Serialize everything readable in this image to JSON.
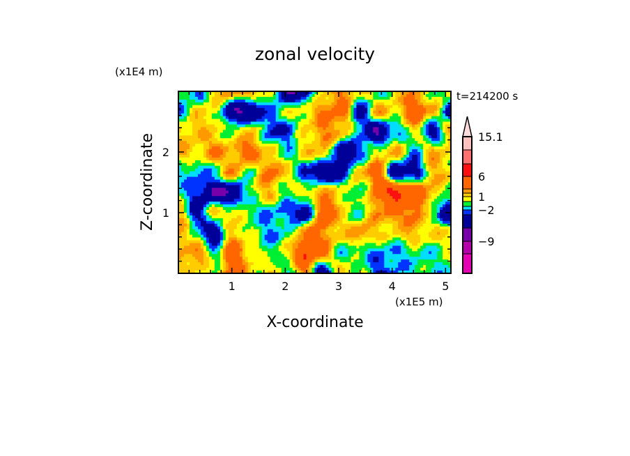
{
  "chart_data": {
    "type": "heatmap",
    "title": "zonal velocity",
    "xlabel": "X-coordinate",
    "ylabel": "Z-coordinate",
    "x_unit_label": "(x1E5 m)",
    "y_unit_label": "(x1E4 m)",
    "time_label": "t=214200 s",
    "xlim": [
      0,
      5.1
    ],
    "ylim": [
      0,
      3.0
    ],
    "x_ticks": [
      "1",
      "2",
      "3",
      "4",
      "5"
    ],
    "x_tick_values": [
      1,
      2,
      3,
      4,
      5
    ],
    "y_ticks": [
      "1",
      "2"
    ],
    "y_tick_values": [
      1,
      2
    ],
    "grid_note": "approximate coarse field, rows from top (z=3) to bottom (z=0), columns x=0..5.1",
    "field": [
      [
        -1,
        -2.5,
        1,
        3,
        2,
        0.5,
        -6,
        -4,
        1,
        3,
        1,
        -1,
        1,
        3,
        -1,
        1
      ],
      [
        -2,
        1,
        1,
        -6,
        -6,
        -2,
        0,
        1,
        3,
        4,
        -4,
        2,
        1,
        5,
        2,
        -4
      ],
      [
        1,
        2,
        1,
        0,
        2,
        -3,
        -3,
        1,
        3,
        2,
        -2,
        -6,
        -2,
        1,
        -4,
        2
      ],
      [
        2,
        1,
        3,
        2,
        4,
        1,
        -1,
        1,
        2,
        -5,
        -3,
        1,
        2,
        -2,
        2,
        1
      ],
      [
        -1,
        -2,
        -1,
        3,
        -1,
        4,
        1,
        -3,
        -6,
        -4,
        2,
        4,
        -5,
        -4,
        2,
        1
      ],
      [
        -1,
        -3,
        -6,
        -6,
        0,
        2,
        -1,
        1,
        2,
        1,
        -1,
        4,
        7,
        5,
        2,
        -1
      ],
      [
        2,
        -4,
        1,
        1,
        -1,
        -2,
        -2,
        -5,
        6,
        1,
        -1,
        3,
        3,
        4,
        -1,
        -5
      ],
      [
        3,
        -1,
        -5,
        2,
        0,
        -2,
        -1,
        3,
        3,
        1,
        3,
        1,
        1,
        2,
        1,
        1
      ],
      [
        2,
        3,
        -1,
        5,
        1,
        -1,
        1,
        6,
        3,
        -1,
        -1,
        -2,
        -2,
        -1,
        -1,
        0
      ],
      [
        1,
        1,
        0,
        5,
        1,
        1,
        -1,
        3,
        -5,
        2,
        0,
        -3,
        -2,
        -1,
        -1,
        -1
      ]
    ],
    "levels": [
      -12,
      -9,
      -6,
      -3,
      -2,
      -1,
      0,
      1,
      2,
      3,
      6,
      9,
      12,
      15.1
    ],
    "colors": [
      "#e600b4",
      "#b400a8",
      "#7800aa",
      "#000099",
      "#0033ff",
      "#00ddff",
      "#00ee33",
      "#ffff00",
      "#ffcc00",
      "#ff9900",
      "#ff6600",
      "#ff1010",
      "#ff7070",
      "#ffc0c0",
      "#ffdcdc"
    ],
    "colorbar_labels": [
      "15.1",
      "6",
      "1",
      "-2",
      "-9"
    ],
    "colorbar_label_values": [
      15.1,
      6,
      1,
      -2,
      -9
    ],
    "legend_placement": "right"
  }
}
